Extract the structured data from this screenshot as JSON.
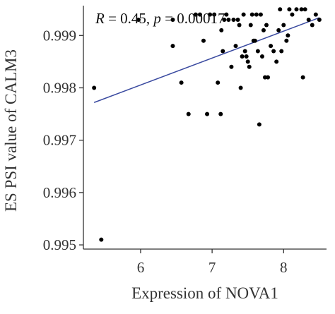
{
  "chart_data": {
    "type": "scatter",
    "xlabel": "Expression of NOVA1",
    "ylabel": "ES PSI value of CALM3",
    "annotation": {
      "r_label": "R",
      "r_value": " = 0.45, ",
      "p_label": "p",
      "p_value": " = 0.00017"
    },
    "xlim": [
      5.2,
      8.6
    ],
    "ylim": [
      0.99492,
      0.99957
    ],
    "x_ticks": [
      6,
      7,
      8
    ],
    "x_tick_labels": [
      "6",
      "7",
      "8"
    ],
    "y_ticks": [
      0.995,
      0.996,
      0.997,
      0.998,
      0.999
    ],
    "y_tick_labels": [
      "0.995",
      "0.996",
      "0.997",
      "0.998",
      "0.999"
    ],
    "grid": false,
    "regression": {
      "x": [
        5.35,
        8.5
      ],
      "y": [
        0.99772,
        0.99934
      ],
      "color": "#3a4aa0"
    },
    "point_color": "#000000",
    "points": [
      {
        "x": 5.35,
        "y": 0.998
      },
      {
        "x": 5.45,
        "y": 0.9951
      },
      {
        "x": 5.97,
        "y": 0.9993
      },
      {
        "x": 6.45,
        "y": 0.9993
      },
      {
        "x": 6.45,
        "y": 0.9988
      },
      {
        "x": 6.57,
        "y": 0.9981
      },
      {
        "x": 6.67,
        "y": 0.9975
      },
      {
        "x": 6.77,
        "y": 0.9994
      },
      {
        "x": 6.83,
        "y": 0.9994
      },
      {
        "x": 6.88,
        "y": 0.9989
      },
      {
        "x": 6.93,
        "y": 0.9975
      },
      {
        "x": 6.97,
        "y": 0.9994
      },
      {
        "x": 7.03,
        "y": 0.9994
      },
      {
        "x": 7.08,
        "y": 0.9981
      },
      {
        "x": 7.12,
        "y": 0.9975
      },
      {
        "x": 7.13,
        "y": 0.9991
      },
      {
        "x": 7.15,
        "y": 0.9987
      },
      {
        "x": 7.17,
        "y": 0.9993
      },
      {
        "x": 7.2,
        "y": 0.9994
      },
      {
        "x": 7.23,
        "y": 0.9993
      },
      {
        "x": 7.27,
        "y": 0.9984
      },
      {
        "x": 7.3,
        "y": 0.9993
      },
      {
        "x": 7.33,
        "y": 0.9988
      },
      {
        "x": 7.36,
        "y": 0.9993
      },
      {
        "x": 7.38,
        "y": 0.9992
      },
      {
        "x": 7.4,
        "y": 0.998
      },
      {
        "x": 7.42,
        "y": 0.9986
      },
      {
        "x": 7.44,
        "y": 0.9994
      },
      {
        "x": 7.46,
        "y": 0.9987
      },
      {
        "x": 7.48,
        "y": 0.9986
      },
      {
        "x": 7.5,
        "y": 0.9985
      },
      {
        "x": 7.52,
        "y": 0.9984
      },
      {
        "x": 7.54,
        "y": 0.9992
      },
      {
        "x": 7.56,
        "y": 0.9994
      },
      {
        "x": 7.58,
        "y": 0.9989
      },
      {
        "x": 7.6,
        "y": 0.9989
      },
      {
        "x": 7.62,
        "y": 0.9994
      },
      {
        "x": 7.64,
        "y": 0.9987
      },
      {
        "x": 7.66,
        "y": 0.9973
      },
      {
        "x": 7.68,
        "y": 0.9994
      },
      {
        "x": 7.7,
        "y": 0.9986
      },
      {
        "x": 7.72,
        "y": 0.9991
      },
      {
        "x": 7.74,
        "y": 0.9982
      },
      {
        "x": 7.76,
        "y": 0.9992
      },
      {
        "x": 7.78,
        "y": 0.9982
      },
      {
        "x": 7.82,
        "y": 0.9988
      },
      {
        "x": 7.86,
        "y": 0.9987
      },
      {
        "x": 7.9,
        "y": 0.9985
      },
      {
        "x": 7.93,
        "y": 0.9991
      },
      {
        "x": 7.95,
        "y": 0.9995
      },
      {
        "x": 7.97,
        "y": 0.9987
      },
      {
        "x": 8.0,
        "y": 0.9992
      },
      {
        "x": 8.04,
        "y": 0.9989
      },
      {
        "x": 8.06,
        "y": 0.999
      },
      {
        "x": 8.08,
        "y": 0.9995
      },
      {
        "x": 8.12,
        "y": 0.9994
      },
      {
        "x": 8.18,
        "y": 0.9995
      },
      {
        "x": 8.25,
        "y": 0.9995
      },
      {
        "x": 8.27,
        "y": 0.9982
      },
      {
        "x": 8.3,
        "y": 0.9995
      },
      {
        "x": 8.35,
        "y": 0.9993
      },
      {
        "x": 8.4,
        "y": 0.9992
      },
      {
        "x": 8.45,
        "y": 0.9994
      },
      {
        "x": 8.5,
        "y": 0.9993
      }
    ]
  }
}
